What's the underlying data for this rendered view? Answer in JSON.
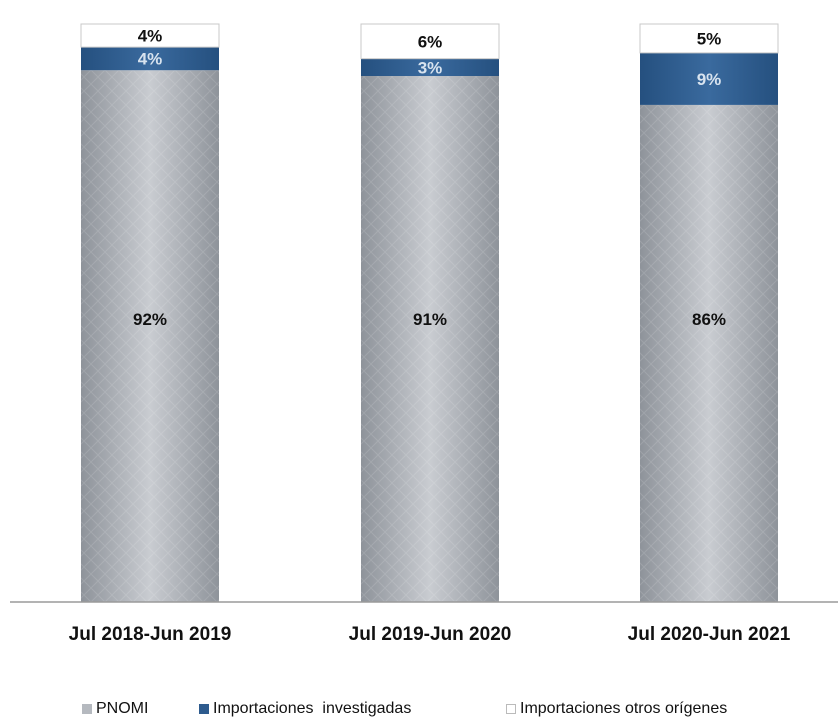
{
  "chart_data": {
    "type": "bar",
    "stacked": true,
    "percent": true,
    "categories": [
      "Jul 2018-Jun 2019",
      "Jul 2019-Jun 2020",
      "Jul 2020-Jun 2021"
    ],
    "series": [
      {
        "name": "PNOMI",
        "values": [
          92,
          91,
          86
        ],
        "labels": [
          "92%",
          "91%",
          "86%"
        ],
        "color": "#b5b9bf"
      },
      {
        "name": "Importaciones  investigadas",
        "values": [
          4,
          3,
          9
        ],
        "labels": [
          "4%",
          "3%",
          "9%"
        ],
        "color": "#2e5b8e"
      },
      {
        "name": "Importaciones otros orígenes",
        "values": [
          4,
          6,
          5
        ],
        "labels": [
          "4%",
          "6%",
          "5%"
        ],
        "color": "#ffffff"
      }
    ],
    "ylim": [
      0,
      100
    ],
    "grid": false,
    "legend_position": "bottom"
  }
}
